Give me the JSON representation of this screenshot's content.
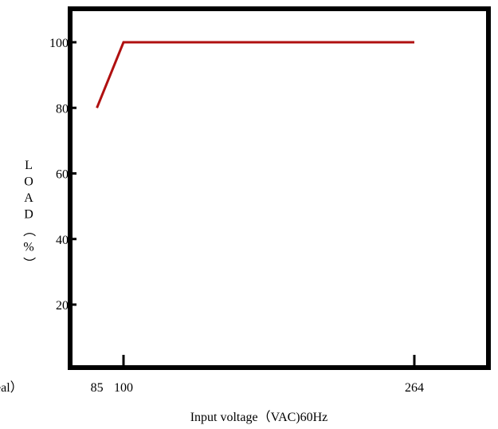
{
  "chart_data": {
    "type": "line",
    "title": "",
    "xlabel": "Input voltage（VAC)60Hz",
    "ylabel": "LOAD（%）",
    "x_ticks": [
      85,
      100,
      264
    ],
    "y_ticks": [
      20,
      40,
      60,
      80,
      100
    ],
    "xlim": [
      85,
      300
    ],
    "ylim": [
      0,
      110
    ],
    "left_edge_fragment": "eal）",
    "grid": false,
    "series": [
      {
        "color": "#b01010",
        "x": [
          85,
          100,
          264
        ],
        "y": [
          80,
          100,
          100
        ]
      }
    ]
  }
}
